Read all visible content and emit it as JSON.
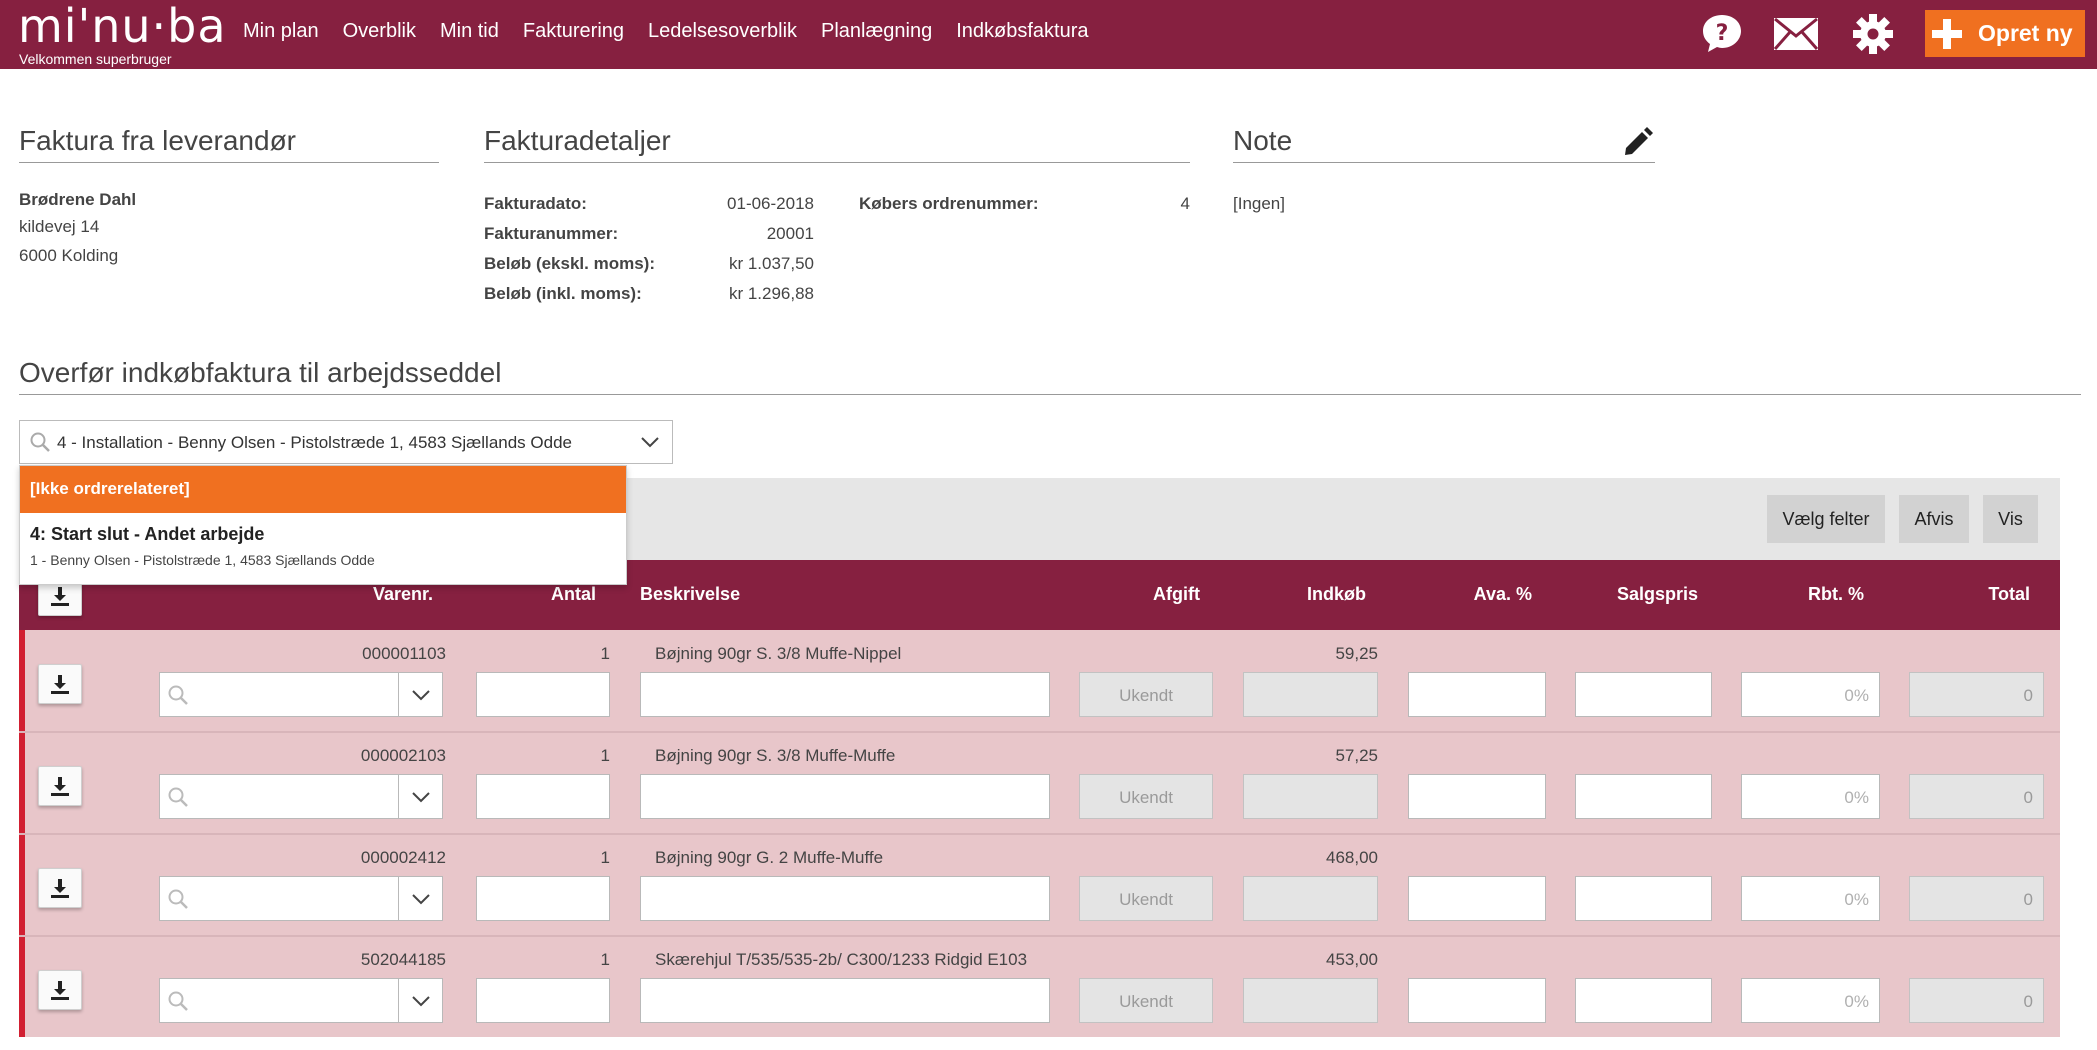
{
  "header": {
    "logo": "mi'nu·ba",
    "welcome": "Velkommen  superbruger",
    "nav": [
      "Min plan",
      "Overblik",
      "Min tid",
      "Fakturering",
      "Ledelsesoverblik",
      "Planlægning",
      "Indkøbsfaktura"
    ],
    "icons": [
      "help-icon",
      "mail-icon",
      "gear-icon"
    ],
    "create_label": "Opret ny",
    "brand_color": "#862040",
    "accent_color": "#f07020"
  },
  "supplier": {
    "title": "Faktura fra leverandør",
    "name": "Brødrene Dahl",
    "street": "kildevej 14",
    "city": "6000 Kolding"
  },
  "details": {
    "title": "Fakturadetaljer",
    "rows": [
      {
        "label": "Fakturadato:",
        "value": "01-06-2018"
      },
      {
        "label": "Fakturanummer:",
        "value": "20001"
      },
      {
        "label": "Beløb (ekskl. moms):",
        "value": "kr 1.037,50"
      },
      {
        "label": "Beløb (inkl. moms):",
        "value": "kr 1.296,88"
      }
    ],
    "buyer_order_label": "Købers ordrenummer:",
    "buyer_order_value": "4"
  },
  "note": {
    "title": "Note",
    "value": "[Ingen]"
  },
  "transfer": {
    "title": "Overfør indkøbfaktura til arbejdsseddel",
    "selected_order": "4 - Installation - Benny Olsen - Pistolstræde 1, 4583 Sjællands Odde",
    "dropdown": {
      "selected": "[Ikke ordrerelateret]",
      "items": [
        {
          "title": "4: Start slut - Andet arbejde",
          "subtitle": "1 - Benny Olsen - Pistolstræde 1, 4583 Sjællands Odde"
        }
      ]
    },
    "buttons": {
      "choose_fields": "Vælg felter",
      "reject": "Afvis",
      "show": "Vis"
    }
  },
  "table": {
    "headers": {
      "varenr": "Varenr.",
      "antal": "Antal",
      "beskrivelse": "Beskrivelse",
      "afgift": "Afgift",
      "indkob": "Indkøb",
      "ava": "Ava. %",
      "salgspris": "Salgspris",
      "rbt": "Rbt. %",
      "total": "Total"
    },
    "placeholders": {
      "afgift": "Ukendt",
      "rbt": "0%",
      "total": "0"
    },
    "rows": [
      {
        "varenr": "000001103",
        "antal": "1",
        "beskrivelse": "Bøjning 90gr S. 3/8 Muffe-Nippel",
        "indkob": "59,25"
      },
      {
        "varenr": "000002103",
        "antal": "1",
        "beskrivelse": "Bøjning 90gr S. 3/8 Muffe-Muffe",
        "indkob": "57,25"
      },
      {
        "varenr": "000002412",
        "antal": "1",
        "beskrivelse": "Bøjning 90gr G. 2 Muffe-Muffe",
        "indkob": "468,00"
      },
      {
        "varenr": "502044185",
        "antal": "1",
        "beskrivelse": "Skærehjul T/535/535-2b/ C300/1233 Ridgid E103",
        "indkob": "453,00"
      }
    ]
  }
}
